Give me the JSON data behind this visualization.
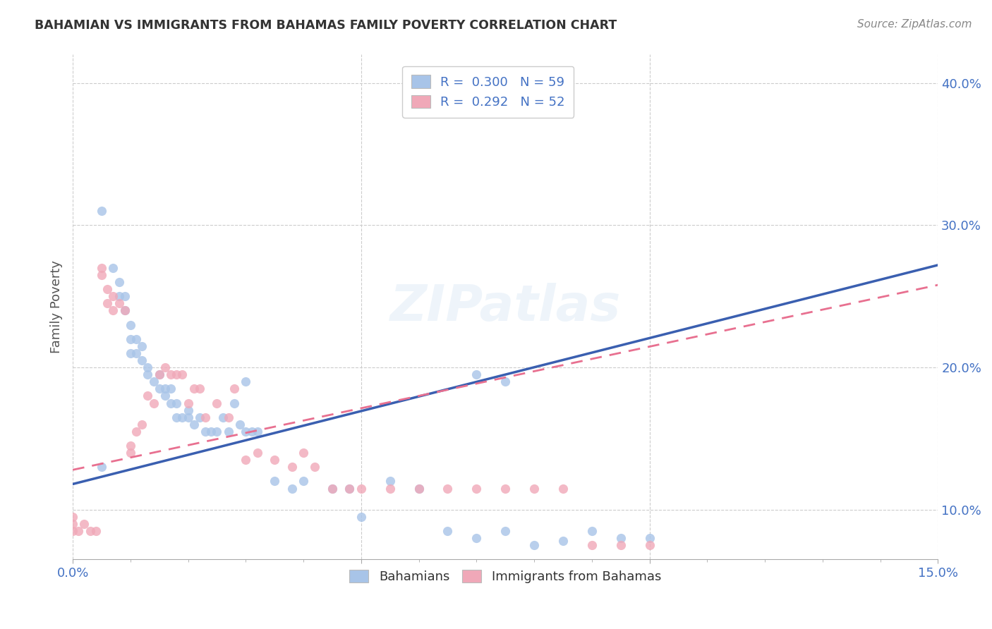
{
  "title": "BAHAMIAN VS IMMIGRANTS FROM BAHAMAS FAMILY POVERTY CORRELATION CHART",
  "source": "Source: ZipAtlas.com",
  "xlabel": "",
  "ylabel": "Family Poverty",
  "xlim": [
    0.0,
    0.15
  ],
  "ylim": [
    0.065,
    0.42
  ],
  "yticks": [
    0.1,
    0.2,
    0.3,
    0.4
  ],
  "yticklabels": [
    "10.0%",
    "20.0%",
    "30.0%",
    "40.0%"
  ],
  "watermark": "ZIPatlas",
  "legend_entries": [
    {
      "label": "R =  0.300   N = 59",
      "color": "#a8c8f0"
    },
    {
      "label": "R =  0.292   N = 52",
      "color": "#f4b8c8"
    }
  ],
  "series1_label": "Bahamians",
  "series2_label": "Immigrants from Bahamas",
  "series1_color": "#a8c4e8",
  "series2_color": "#f0a8b8",
  "trendline1_color": "#3a5fb0",
  "trendline2_color": "#e87090",
  "background_color": "#ffffff",
  "grid_color": "#cccccc",
  "tick_color": "#4472c4",
  "title_color": "#333333",
  "trendline1_x0": 0.0,
  "trendline1_y0": 0.118,
  "trendline1_x1": 0.15,
  "trendline1_y1": 0.272,
  "trendline2_x0": 0.0,
  "trendline2_y0": 0.128,
  "trendline2_x1": 0.15,
  "trendline2_y1": 0.258,
  "series1_x": [
    0.005,
    0.007,
    0.008,
    0.008,
    0.009,
    0.009,
    0.01,
    0.01,
    0.01,
    0.011,
    0.011,
    0.012,
    0.012,
    0.013,
    0.013,
    0.014,
    0.015,
    0.015,
    0.016,
    0.016,
    0.017,
    0.017,
    0.018,
    0.018,
    0.019,
    0.02,
    0.02,
    0.021,
    0.022,
    0.023,
    0.024,
    0.025,
    0.026,
    0.027,
    0.028,
    0.029,
    0.03,
    0.031,
    0.032,
    0.035,
    0.038,
    0.04,
    0.045,
    0.048,
    0.05,
    0.055,
    0.06,
    0.065,
    0.07,
    0.075,
    0.08,
    0.085,
    0.09,
    0.095,
    0.1,
    0.005,
    0.03,
    0.07,
    0.075
  ],
  "series1_y": [
    0.31,
    0.27,
    0.26,
    0.25,
    0.25,
    0.24,
    0.23,
    0.22,
    0.21,
    0.22,
    0.21,
    0.215,
    0.205,
    0.2,
    0.195,
    0.19,
    0.195,
    0.185,
    0.185,
    0.18,
    0.185,
    0.175,
    0.175,
    0.165,
    0.165,
    0.17,
    0.165,
    0.16,
    0.165,
    0.155,
    0.155,
    0.155,
    0.165,
    0.155,
    0.175,
    0.16,
    0.155,
    0.155,
    0.155,
    0.12,
    0.115,
    0.12,
    0.115,
    0.115,
    0.095,
    0.12,
    0.115,
    0.085,
    0.08,
    0.085,
    0.075,
    0.078,
    0.085,
    0.08,
    0.08,
    0.13,
    0.19,
    0.195,
    0.19
  ],
  "series2_x": [
    0.0,
    0.0,
    0.0,
    0.001,
    0.002,
    0.003,
    0.004,
    0.005,
    0.005,
    0.006,
    0.006,
    0.007,
    0.007,
    0.008,
    0.009,
    0.01,
    0.01,
    0.011,
    0.012,
    0.013,
    0.014,
    0.015,
    0.016,
    0.017,
    0.018,
    0.019,
    0.02,
    0.021,
    0.022,
    0.023,
    0.025,
    0.027,
    0.028,
    0.03,
    0.032,
    0.035,
    0.038,
    0.04,
    0.042,
    0.045,
    0.048,
    0.05,
    0.055,
    0.06,
    0.065,
    0.07,
    0.075,
    0.08,
    0.085,
    0.09,
    0.095,
    0.1
  ],
  "series2_y": [
    0.085,
    0.09,
    0.095,
    0.085,
    0.09,
    0.085,
    0.085,
    0.27,
    0.265,
    0.255,
    0.245,
    0.25,
    0.24,
    0.245,
    0.24,
    0.145,
    0.14,
    0.155,
    0.16,
    0.18,
    0.175,
    0.195,
    0.2,
    0.195,
    0.195,
    0.195,
    0.175,
    0.185,
    0.185,
    0.165,
    0.175,
    0.165,
    0.185,
    0.135,
    0.14,
    0.135,
    0.13,
    0.14,
    0.13,
    0.115,
    0.115,
    0.115,
    0.115,
    0.115,
    0.115,
    0.115,
    0.115,
    0.115,
    0.115,
    0.075,
    0.075,
    0.075
  ]
}
